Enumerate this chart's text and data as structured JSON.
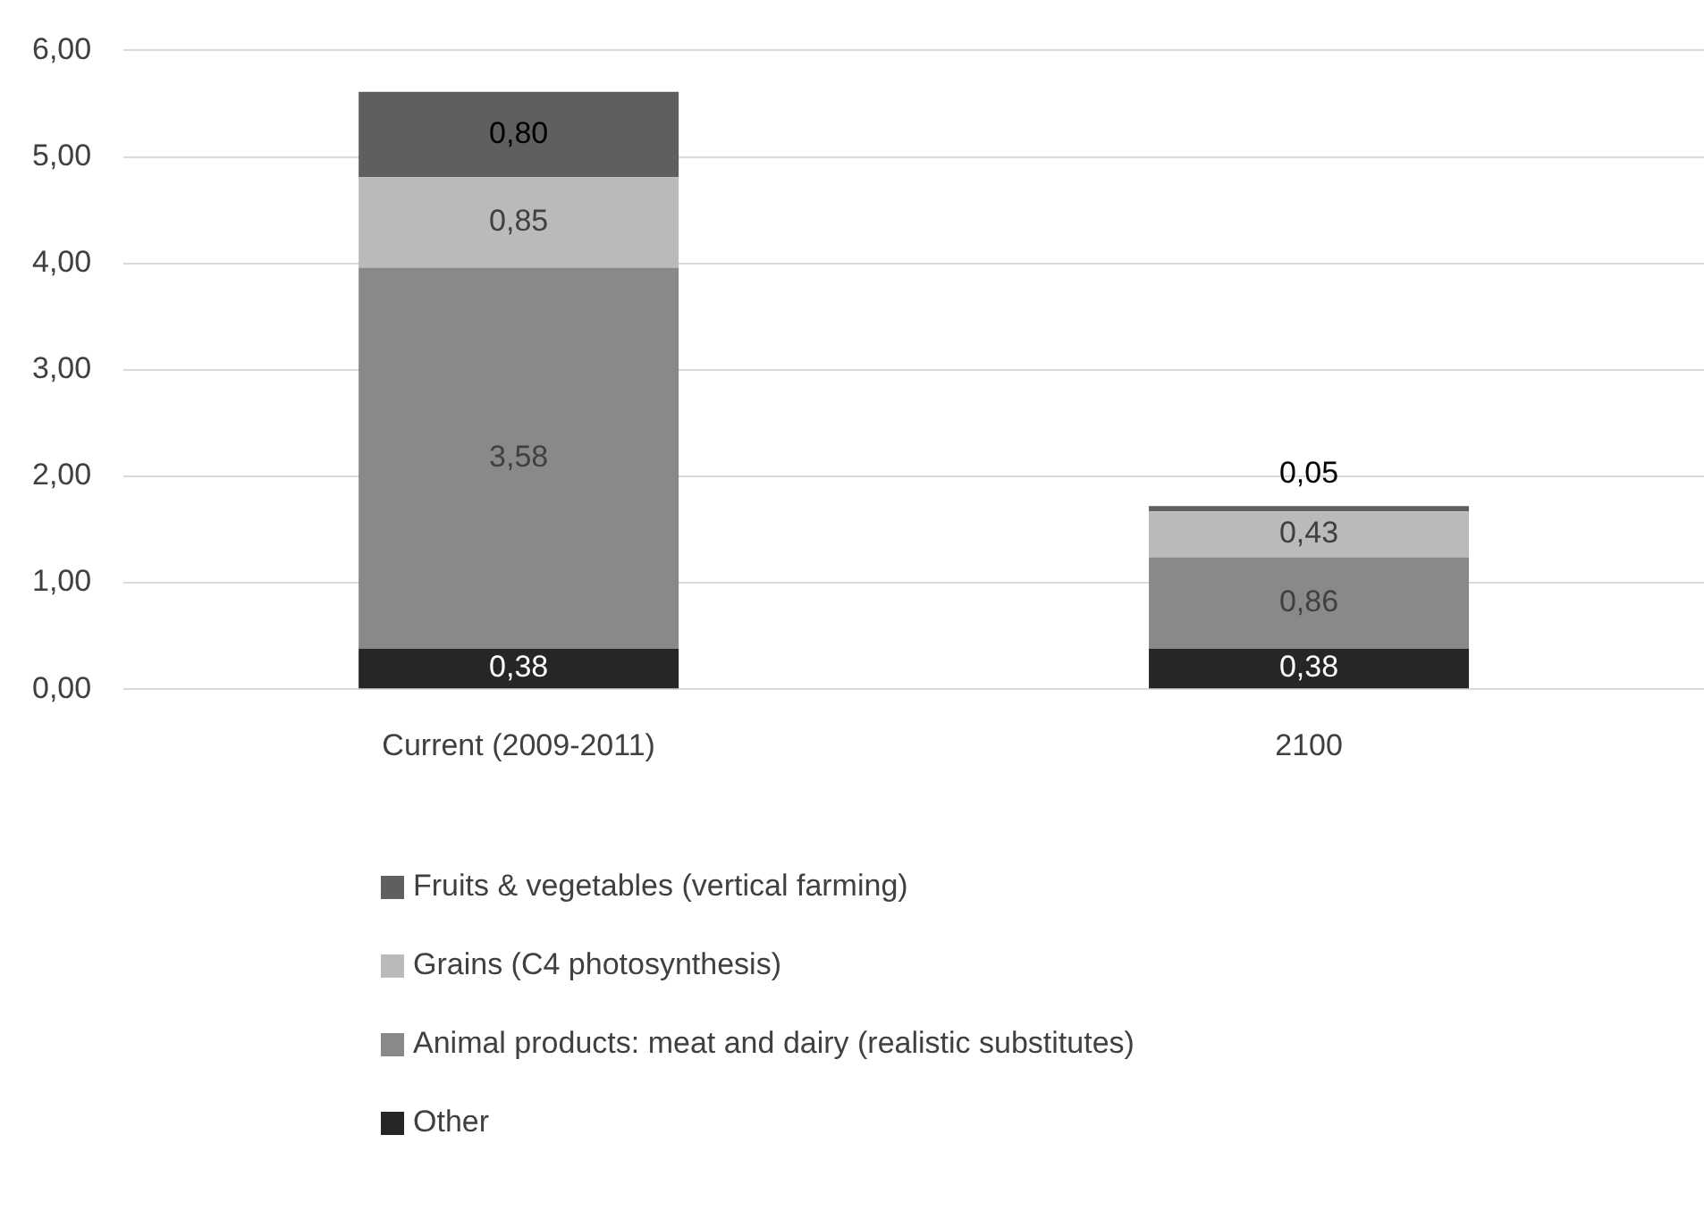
{
  "chart_data": {
    "type": "bar",
    "stacked": true,
    "categories": [
      "Current (2009-2011)",
      "2100"
    ],
    "series": [
      {
        "name": "Other",
        "color": "#262626",
        "values": [
          0.38,
          0.38
        ],
        "value_labels": [
          "0,38",
          "0,38"
        ]
      },
      {
        "name": "Animal products: meat and dairy (realistic substitutes)",
        "color": "#898989",
        "values": [
          3.58,
          0.86
        ],
        "value_labels": [
          "3,58",
          "0,86"
        ]
      },
      {
        "name": "Grains (C4 photosynthesis)",
        "color": "#bababa",
        "values": [
          0.85,
          0.43
        ],
        "value_labels": [
          "0,85",
          "0,43"
        ]
      },
      {
        "name": "Fruits & vegetables (vertical farming)",
        "color": "#5f5f5f",
        "values": [
          0.8,
          0.05
        ],
        "value_labels": [
          "0,80",
          "0,05"
        ]
      }
    ],
    "ylim": [
      0,
      6
    ],
    "yticks": [
      {
        "value": 0,
        "label": "0,00"
      },
      {
        "value": 1,
        "label": "1,00"
      },
      {
        "value": 2,
        "label": "2,00"
      },
      {
        "value": 3,
        "label": "3,00"
      },
      {
        "value": 4,
        "label": "4,00"
      },
      {
        "value": 5,
        "label": "5,00"
      },
      {
        "value": 6,
        "label": "6,00"
      }
    ],
    "grid": "y",
    "legend": "bottom"
  }
}
